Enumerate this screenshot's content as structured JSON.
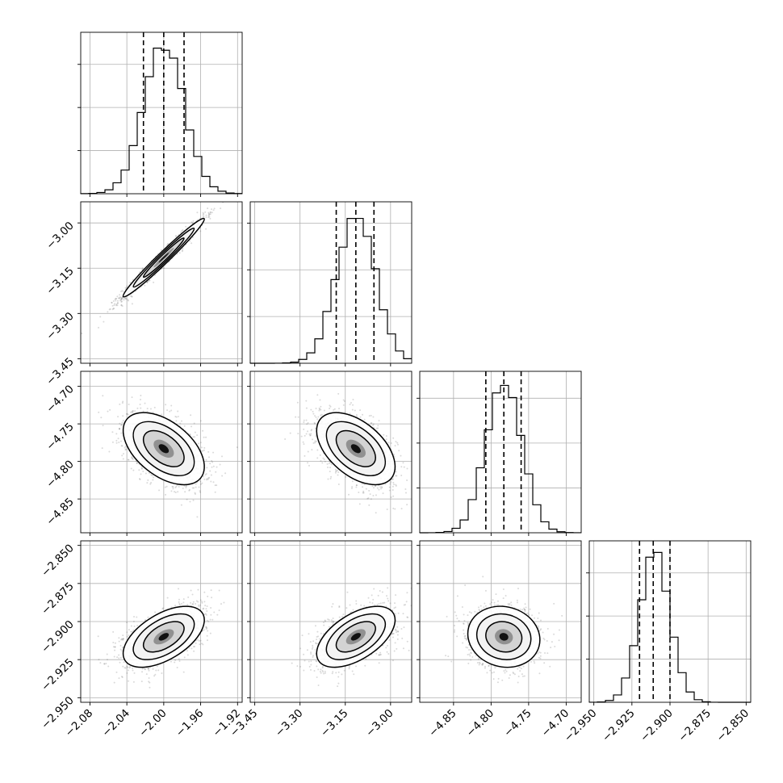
{
  "chart_data": {
    "type": "corner",
    "parameters": [
      {
        "range": [
          -2.09,
          -1.915
        ],
        "ticks": [
          -2.08,
          -2.04,
          -2.0,
          -1.96,
          -1.92
        ],
        "tick_labels": [
          "−2.08",
          "−2.04",
          "−2.00",
          "−1.96",
          "−1.92"
        ],
        "mean": -2.0,
        "std": 0.022,
        "quantiles": [
          -2.022,
          -2.0,
          -1.978
        ]
      },
      {
        "range": [
          -3.465,
          -2.93
        ],
        "ticks": [
          -3.45,
          -3.3,
          -3.15,
          -3.0
        ],
        "tick_labels": [
          "−3.45",
          "−3.30",
          "−3.15",
          "−3.00"
        ],
        "mean": -3.115,
        "std": 0.065,
        "quantiles": [
          -3.18,
          -3.115,
          -3.055
        ]
      },
      {
        "range": [
          -4.895,
          -4.68
        ],
        "ticks": [
          -4.85,
          -4.8,
          -4.75,
          -4.7
        ],
        "tick_labels": [
          "−4.85",
          "−4.80",
          "−4.75",
          "−4.70"
        ],
        "mean": -4.783,
        "std": 0.024,
        "quantiles": [
          -4.807,
          -4.783,
          -4.76
        ]
      },
      {
        "range": [
          -2.953,
          -2.847
        ],
        "ticks": [
          -2.95,
          -2.925,
          -2.9,
          -2.875,
          -2.85
        ],
        "tick_labels": [
          "−2.950",
          "−2.925",
          "−2.900",
          "−2.875",
          "−2.850"
        ],
        "mean": -2.91,
        "std": 0.01,
        "quantiles": [
          -2.92,
          -2.911,
          -2.9
        ]
      }
    ],
    "histogram_peaks": [
      520,
      480,
      500,
      520
    ],
    "histogram_ticks": [
      [
        150,
        300,
        450
      ],
      [
        150,
        300,
        450
      ],
      [
        150,
        300,
        450
      ],
      [
        150,
        300,
        450
      ]
    ],
    "correlations": [
      [
        1,
        0.98,
        -0.5,
        0.55
      ],
      [
        0.98,
        1,
        -0.5,
        0.55
      ],
      [
        -0.5,
        -0.5,
        1,
        -0.1
      ],
      [
        0.55,
        0.55,
        -0.1,
        1
      ]
    ],
    "contour_levels_sigma": [
      0.5,
      1.0,
      1.5,
      2.0
    ],
    "grid": true,
    "colors": {
      "hist": "#000000",
      "points": "#555555",
      "contour": "#000000",
      "quantile": "#000000"
    }
  }
}
